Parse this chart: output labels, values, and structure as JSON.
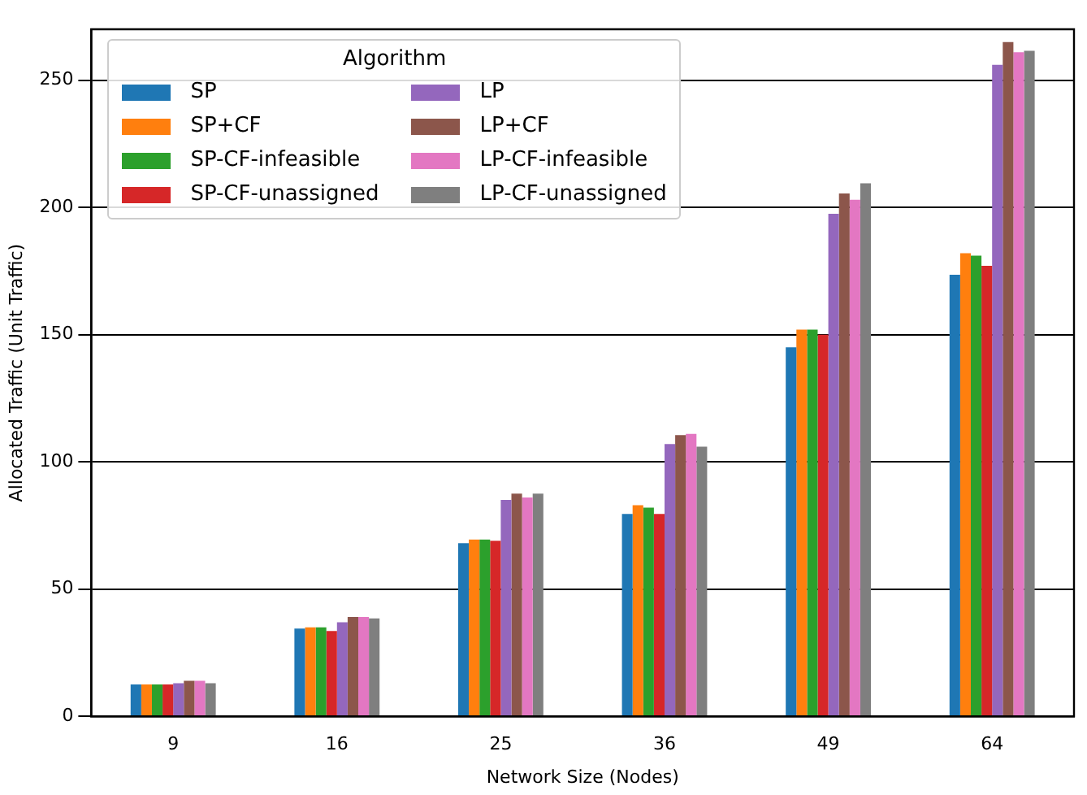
{
  "chart_data": {
    "type": "bar",
    "xlabel": "Network Size (Nodes)",
    "ylabel": "Allocated Traffic (Unit Traffic)",
    "legend_title": "Algorithm",
    "categories": [
      "9",
      "16",
      "25",
      "36",
      "49",
      "64"
    ],
    "series": [
      {
        "name": "SP",
        "color": "#1f77b4",
        "values": [
          12.5,
          34.5,
          68,
          79.5,
          145,
          173.5
        ]
      },
      {
        "name": "SP+CF",
        "color": "#ff7f0e",
        "values": [
          12.5,
          35,
          69.5,
          83,
          152,
          182
        ]
      },
      {
        "name": "SP-CF-infeasible",
        "color": "#2ca02c",
        "values": [
          12.5,
          35,
          69.5,
          82,
          152,
          181
        ]
      },
      {
        "name": "SP-CF-unassigned",
        "color": "#d62728",
        "values": [
          12.5,
          33.5,
          69,
          79.5,
          150,
          177
        ]
      },
      {
        "name": "LP",
        "color": "#9467bd",
        "values": [
          13,
          37,
          85,
          107,
          197.5,
          256
        ]
      },
      {
        "name": "LP+CF",
        "color": "#8c564b",
        "values": [
          14,
          39,
          87.5,
          110.5,
          205.5,
          265
        ]
      },
      {
        "name": "LP-CF-infeasible",
        "color": "#e377c2",
        "values": [
          14,
          39,
          86,
          111,
          203,
          261
        ]
      },
      {
        "name": "LP-CF-unassigned",
        "color": "#7f7f7f",
        "values": [
          13,
          38.5,
          87.5,
          106,
          209.5,
          261.5
        ]
      }
    ],
    "ylim": [
      0,
      270
    ],
    "yticks": [
      0,
      50,
      100,
      150,
      200,
      250
    ],
    "grid": "y",
    "legend": "top left"
  }
}
